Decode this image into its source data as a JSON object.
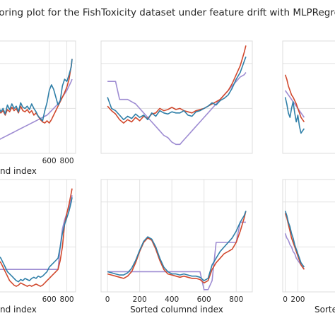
{
  "figure": {
    "title": "toring plot for the FishToxicity dataset under feature drift with MLPRegre"
  },
  "colors": {
    "red": "#d1492e",
    "blue": "#2f7fa8",
    "purple": "#9e8cd2",
    "grid": "#e3e3e3",
    "spine": "#dcdcdc",
    "tick": "#262626"
  },
  "chart_data": [
    {
      "type": "line",
      "position": "top-left",
      "x": [
        0,
        25,
        50,
        75,
        100,
        125,
        150,
        175,
        200,
        225,
        250,
        275,
        300,
        325,
        350,
        375,
        400,
        425,
        450,
        475,
        500,
        525,
        550,
        575,
        600,
        625,
        650,
        675,
        700,
        725,
        750,
        775,
        800,
        825,
        850,
        860
      ],
      "xlim": [
        -40,
        900
      ],
      "ylim": [
        0,
        100
      ],
      "xticks": [
        600,
        800
      ],
      "xticklabels": [
        "600",
        "800"
      ],
      "xlabel": "nd index",
      "series": [
        {
          "color": "red",
          "values": [
            35,
            37,
            36,
            38,
            34,
            39,
            37,
            41,
            38,
            40,
            36,
            42,
            38,
            37,
            39,
            36,
            38,
            34,
            36,
            33,
            30,
            28,
            27,
            29,
            27,
            30,
            34,
            38,
            42,
            46,
            50,
            54,
            59,
            66,
            78,
            84
          ]
        },
        {
          "color": "blue",
          "values": [
            38,
            41,
            37,
            40,
            35,
            43,
            39,
            44,
            40,
            42,
            37,
            45,
            41,
            40,
            42,
            39,
            44,
            40,
            37,
            33,
            31,
            29,
            38,
            45,
            56,
            61,
            57,
            50,
            43,
            47,
            60,
            66,
            64,
            70,
            77,
            84
          ]
        },
        {
          "color": "purple",
          "values": [
            10,
            12,
            13,
            14,
            15,
            16,
            17,
            18,
            19,
            20,
            21,
            22,
            23,
            24,
            25,
            26,
            27,
            28,
            29,
            30,
            31,
            32,
            33,
            34,
            36,
            38,
            40,
            42,
            44,
            47,
            50,
            53,
            56,
            60,
            64,
            66
          ]
        }
      ]
    },
    {
      "type": "line",
      "position": "top-center",
      "x": [
        0,
        25,
        50,
        75,
        100,
        125,
        150,
        175,
        200,
        225,
        250,
        275,
        300,
        325,
        350,
        375,
        400,
        425,
        450,
        475,
        500,
        525,
        550,
        575,
        600,
        625,
        650,
        675,
        700,
        725,
        750,
        775,
        800,
        825,
        850,
        860
      ],
      "xlim": [
        -40,
        900
      ],
      "ylim": [
        0,
        100
      ],
      "xticks": [],
      "xticklabels": [],
      "xlabel": "",
      "series": [
        {
          "color": "red",
          "values": [
            42,
            38,
            35,
            30,
            27,
            30,
            28,
            32,
            29,
            33,
            31,
            35,
            36,
            40,
            38,
            39,
            41,
            39,
            40,
            38,
            37,
            36,
            38,
            39,
            40,
            42,
            44,
            46,
            48,
            52,
            56,
            62,
            70,
            78,
            90,
            96
          ]
        },
        {
          "color": "blue",
          "values": [
            50,
            40,
            38,
            34,
            30,
            33,
            31,
            35,
            32,
            34,
            30,
            36,
            33,
            38,
            36,
            35,
            37,
            36,
            36,
            38,
            34,
            33,
            37,
            38,
            40,
            42,
            45,
            43,
            47,
            49,
            52,
            58,
            66,
            72,
            82,
            86
          ]
        },
        {
          "color": "purple",
          "values": [
            64,
            64,
            64,
            48,
            48,
            48,
            46,
            44,
            40,
            36,
            32,
            28,
            24,
            20,
            16,
            14,
            10,
            8,
            8,
            12,
            16,
            20,
            24,
            28,
            32,
            36,
            40,
            44,
            48,
            52,
            56,
            60,
            64,
            68,
            70,
            72
          ]
        }
      ]
    },
    {
      "type": "line",
      "position": "top-right",
      "x": [
        0,
        25,
        50,
        75,
        100,
        125,
        150,
        175,
        200,
        225,
        250,
        275,
        300
      ],
      "xlim": [
        -40,
        900
      ],
      "ylim": [
        0,
        100
      ],
      "xticks": [],
      "xticklabels": [],
      "xlabel": "",
      "series": [
        {
          "color": "red",
          "values": [
            70,
            66,
            60,
            56,
            52,
            50,
            47,
            44,
            40,
            36,
            32,
            30,
            28
          ]
        },
        {
          "color": "blue",
          "values": [
            50,
            44,
            36,
            32,
            40,
            46,
            36,
            28,
            34,
            24,
            18,
            20,
            22
          ]
        },
        {
          "color": "purple",
          "values": [
            56,
            54,
            52,
            50,
            48,
            46,
            44,
            42,
            40,
            38,
            36,
            34,
            32
          ]
        }
      ]
    },
    {
      "type": "line",
      "position": "bottom-left",
      "x": [
        0,
        25,
        50,
        75,
        100,
        125,
        150,
        175,
        200,
        225,
        250,
        275,
        300,
        325,
        350,
        375,
        400,
        425,
        450,
        475,
        500,
        525,
        550,
        575,
        600,
        625,
        650,
        675,
        700,
        725,
        750,
        775,
        800,
        825,
        850,
        860
      ],
      "xlim": [
        -40,
        900
      ],
      "ylim": [
        0,
        100
      ],
      "xticks": [
        600,
        800
      ],
      "xticklabels": [
        "600",
        "800"
      ],
      "xlabel": "nd index",
      "series": [
        {
          "color": "red",
          "values": [
            30,
            28,
            26,
            22,
            18,
            14,
            10,
            8,
            6,
            5,
            6,
            8,
            7,
            6,
            5,
            6,
            5,
            6,
            7,
            6,
            5,
            6,
            8,
            10,
            12,
            14,
            16,
            18,
            20,
            28,
            40,
            60,
            70,
            78,
            88,
            92
          ]
        },
        {
          "color": "blue",
          "values": [
            34,
            32,
            30,
            26,
            22,
            18,
            16,
            14,
            12,
            10,
            9,
            11,
            10,
            12,
            11,
            10,
            12,
            13,
            12,
            14,
            13,
            14,
            16,
            18,
            22,
            24,
            26,
            28,
            30,
            40,
            52,
            60,
            66,
            72,
            80,
            84
          ]
        },
        {
          "color": "purple",
          "values": [
            20,
            20,
            20,
            20,
            20,
            20,
            20,
            20,
            20,
            20,
            20,
            20,
            20,
            20,
            20,
            20,
            20,
            20,
            20,
            20,
            20,
            20,
            20,
            20,
            20,
            20,
            20,
            20,
            20,
            40,
            56,
            64,
            70,
            76,
            82,
            86
          ]
        }
      ]
    },
    {
      "type": "line",
      "position": "bottom-center",
      "x": [
        0,
        25,
        50,
        75,
        100,
        125,
        150,
        175,
        200,
        225,
        250,
        275,
        300,
        325,
        350,
        375,
        400,
        425,
        450,
        475,
        500,
        525,
        550,
        575,
        600,
        625,
        650,
        675,
        700,
        725,
        750,
        775,
        800,
        825,
        850,
        860
      ],
      "xlim": [
        -40,
        900
      ],
      "ylim": [
        0,
        100
      ],
      "xticks": [
        0,
        200,
        400,
        600,
        800
      ],
      "xticklabels": [
        "0",
        "200",
        "400",
        "600",
        "800"
      ],
      "xlabel": "Sorted columnd index",
      "series": [
        {
          "color": "red",
          "values": [
            16,
            15,
            14,
            13,
            12,
            14,
            18,
            26,
            36,
            44,
            48,
            46,
            38,
            28,
            20,
            16,
            15,
            14,
            13,
            14,
            13,
            12,
            12,
            11,
            8,
            10,
            20,
            26,
            30,
            34,
            36,
            38,
            44,
            54,
            66,
            72
          ]
        },
        {
          "color": "blue",
          "values": [
            18,
            17,
            16,
            15,
            15,
            17,
            21,
            28,
            37,
            45,
            49,
            47,
            40,
            30,
            22,
            18,
            16,
            16,
            15,
            16,
            15,
            14,
            14,
            13,
            10,
            12,
            24,
            30,
            36,
            40,
            44,
            48,
            54,
            62,
            68,
            72
          ]
        },
        {
          "color": "purple",
          "values": [
            18,
            18,
            18,
            18,
            18,
            18,
            18,
            18,
            18,
            18,
            18,
            18,
            18,
            18,
            18,
            18,
            18,
            18,
            18,
            18,
            18,
            18,
            18,
            18,
            2,
            2,
            10,
            44,
            44,
            44,
            44,
            44,
            44,
            62,
            62,
            62
          ]
        }
      ]
    },
    {
      "type": "line",
      "position": "bottom-right",
      "x": [
        0,
        25,
        50,
        75,
        100,
        125,
        150,
        175,
        200,
        225,
        250,
        275,
        300
      ],
      "xlim": [
        -40,
        900
      ],
      "ylim": [
        0,
        100
      ],
      "xticks": [
        0,
        200
      ],
      "xticklabels": [
        "0",
        "200"
      ],
      "xlabel": "Sorte",
      "series": [
        {
          "color": "red",
          "values": [
            70,
            66,
            60,
            54,
            48,
            44,
            40,
            36,
            32,
            28,
            24,
            22,
            20
          ]
        },
        {
          "color": "blue",
          "values": [
            72,
            68,
            62,
            58,
            52,
            48,
            42,
            38,
            34,
            30,
            26,
            24,
            22
          ]
        },
        {
          "color": "purple",
          "values": [
            52,
            48,
            46,
            42,
            40,
            36,
            34,
            30,
            28,
            26,
            24,
            22,
            20
          ]
        }
      ]
    }
  ]
}
